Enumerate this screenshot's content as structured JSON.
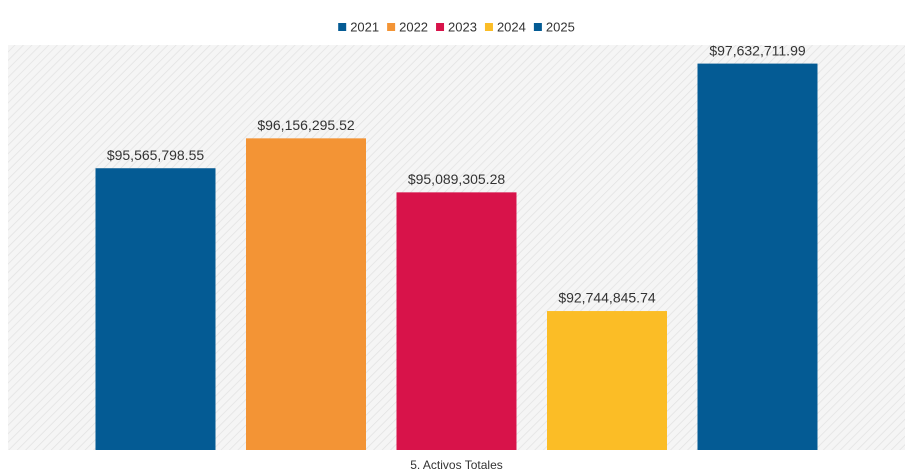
{
  "chart_data": {
    "type": "bar",
    "categories": [
      "5. Activos Totales"
    ],
    "series": [
      {
        "name": "2021",
        "color": "#045b94",
        "values": [
          95565798.55
        ],
        "value_labels": [
          "$95,565,798.55"
        ]
      },
      {
        "name": "2022",
        "color": "#f39435",
        "values": [
          96156295.52
        ],
        "value_labels": [
          "$96,156,295.52"
        ]
      },
      {
        "name": "2023",
        "color": "#d8134a",
        "values": [
          95089305.28
        ],
        "value_labels": [
          "$95,089,305.28"
        ]
      },
      {
        "name": "2024",
        "color": "#fbbd26",
        "values": [
          92744845.74
        ],
        "value_labels": [
          "$92,744,845.74"
        ]
      },
      {
        "name": "2025",
        "color": "#045b94",
        "values": [
          97632711.99
        ],
        "value_labels": [
          "$97,632,711.99"
        ]
      }
    ],
    "ylim": [
      90000000,
      98000000
    ],
    "legend": "top"
  }
}
